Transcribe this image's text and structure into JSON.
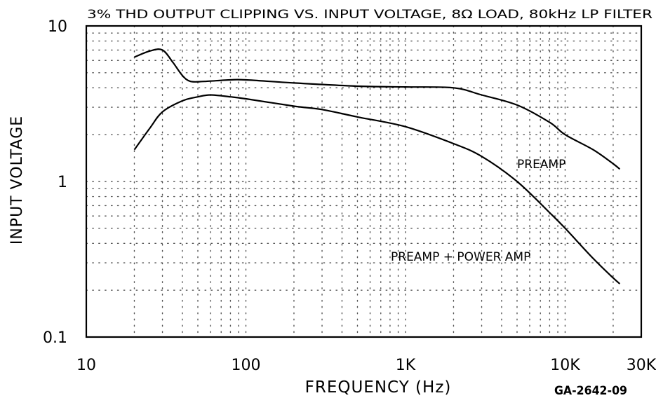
{
  "chart_data": {
    "type": "line",
    "title": "3% THD OUTPUT CLIPPING VS. INPUT VOLTAGE, 8Ω LOAD, 80kHz LP FILTER",
    "xlabel": "FREQUENCY (Hz)",
    "ylabel": "INPUT VOLTAGE",
    "x_scale": "log",
    "y_scale": "log",
    "xlim": [
      10,
      30000
    ],
    "ylim": [
      0.1,
      10
    ],
    "x_tick_labels": [
      {
        "value": 10,
        "label": "10"
      },
      {
        "value": 100,
        "label": "100"
      },
      {
        "value": 1000,
        "label": "1K"
      },
      {
        "value": 10000,
        "label": "10K"
      },
      {
        "value": 30000,
        "label": "30K"
      }
    ],
    "y_tick_labels": [
      {
        "value": 10,
        "label": "10"
      },
      {
        "value": 1,
        "label": "1"
      },
      {
        "value": 0.1,
        "label": "0.1"
      }
    ],
    "grid": "dotted",
    "series": [
      {
        "name": "PREAMP",
        "color": "#000000",
        "points": [
          [
            20,
            6.3
          ],
          [
            25,
            6.9
          ],
          [
            30,
            7.0
          ],
          [
            35,
            5.8
          ],
          [
            40,
            4.8
          ],
          [
            45,
            4.4
          ],
          [
            55,
            4.4
          ],
          [
            80,
            4.5
          ],
          [
            100,
            4.5
          ],
          [
            200,
            4.3
          ],
          [
            500,
            4.1
          ],
          [
            1000,
            4.05
          ],
          [
            2000,
            4.0
          ],
          [
            3000,
            3.6
          ],
          [
            5000,
            3.1
          ],
          [
            8000,
            2.4
          ],
          [
            10000,
            2.0
          ],
          [
            15000,
            1.6
          ],
          [
            20000,
            1.3
          ],
          [
            22000,
            1.2
          ]
        ]
      },
      {
        "name": "PREAMP + POWER AMP",
        "color": "#000000",
        "points": [
          [
            20,
            1.6
          ],
          [
            25,
            2.2
          ],
          [
            30,
            2.8
          ],
          [
            40,
            3.3
          ],
          [
            50,
            3.5
          ],
          [
            60,
            3.6
          ],
          [
            80,
            3.5
          ],
          [
            100,
            3.4
          ],
          [
            200,
            3.05
          ],
          [
            300,
            2.9
          ],
          [
            500,
            2.6
          ],
          [
            1000,
            2.25
          ],
          [
            2000,
            1.75
          ],
          [
            3000,
            1.45
          ],
          [
            5000,
            1.0
          ],
          [
            8000,
            0.63
          ],
          [
            10000,
            0.5
          ],
          [
            15000,
            0.32
          ],
          [
            20000,
            0.24
          ],
          [
            22000,
            0.22
          ]
        ]
      }
    ],
    "annotations": [
      {
        "text": "PREAMP",
        "series": "PREAMP"
      },
      {
        "text": "PREAMP + POWER AMP",
        "series": "PREAMP + POWER AMP"
      }
    ],
    "figure_code": "GA-2642-09"
  }
}
